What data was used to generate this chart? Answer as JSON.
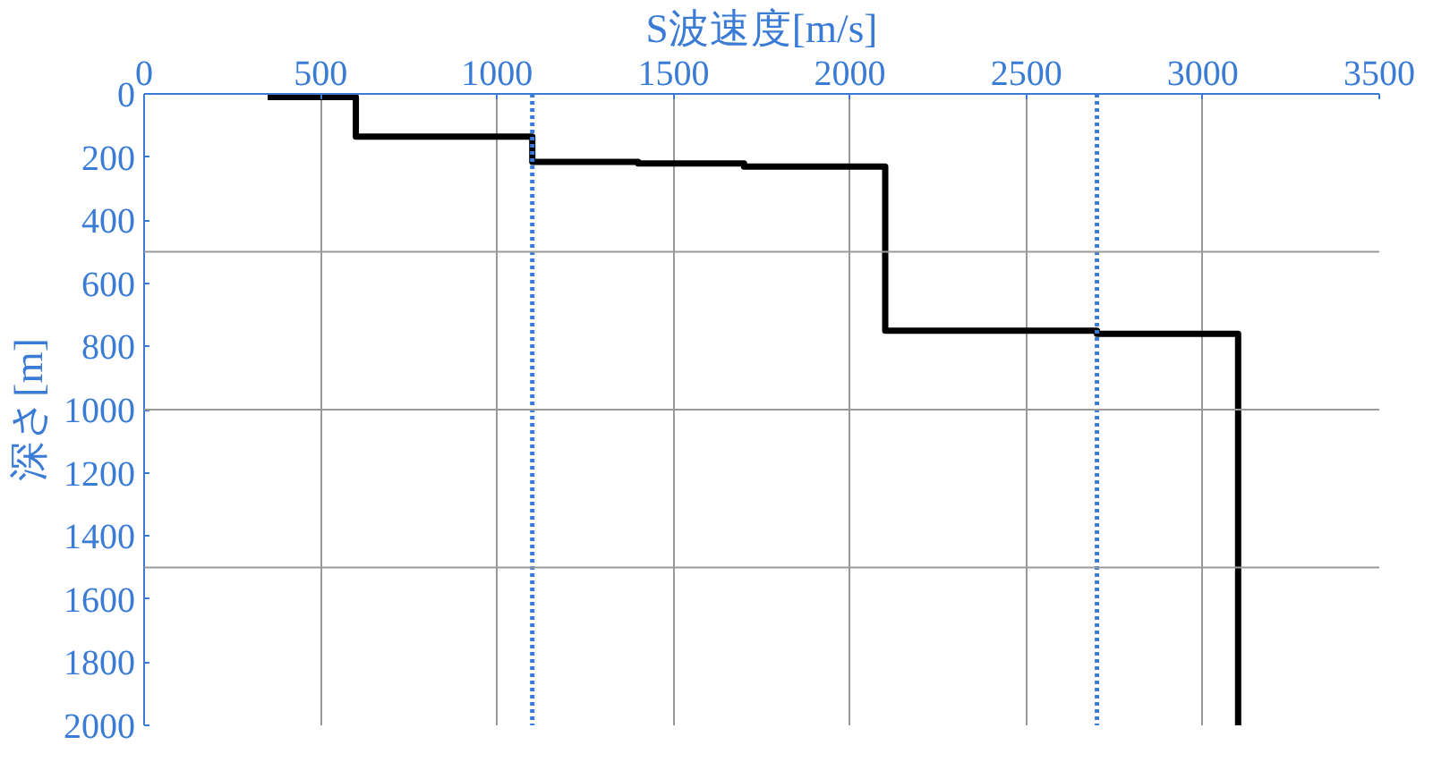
{
  "chart_data": {
    "type": "line",
    "xlabel": "S波速度[m/s]",
    "ylabel": "深さ[m]",
    "series": [
      {
        "color": "#000000",
        "x": [
          350,
          600,
          600,
          1100,
          1100,
          1400,
          1400,
          1700,
          1700,
          2100,
          2100,
          2700,
          2700,
          3100,
          3100
        ],
        "values": [
          10,
          10,
          135,
          135,
          215,
          215,
          220,
          220,
          230,
          230,
          750,
          750,
          760,
          760,
          2000
        ]
      }
    ],
    "xlim": [
      0,
      3500
    ],
    "xticks": [
      0,
      500,
      1000,
      1500,
      2000,
      2500,
      3000,
      3500
    ],
    "ylim": [
      2000,
      0
    ],
    "yticks": [
      0,
      200,
      400,
      600,
      800,
      1000,
      1200,
      1400,
      1600,
      1800,
      2000
    ],
    "grid": "x",
    "marker": "none",
    "line_style": "solid",
    "ref_lines": [
      {
        "axis": "x",
        "value": 1100,
        "color": "#3a7bd5",
        "line_style": "dotted"
      },
      {
        "axis": "x",
        "value": 2700,
        "color": "#3a7bd5",
        "line_style": "dotted"
      },
      {
        "axis": "y",
        "value": 500,
        "color": "#999999",
        "line_style": "solid"
      },
      {
        "axis": "y",
        "value": 1000,
        "color": "#999999",
        "line_style": "solid"
      },
      {
        "axis": "y",
        "value": 1500,
        "color": "#999999",
        "line_style": "solid"
      }
    ]
  }
}
